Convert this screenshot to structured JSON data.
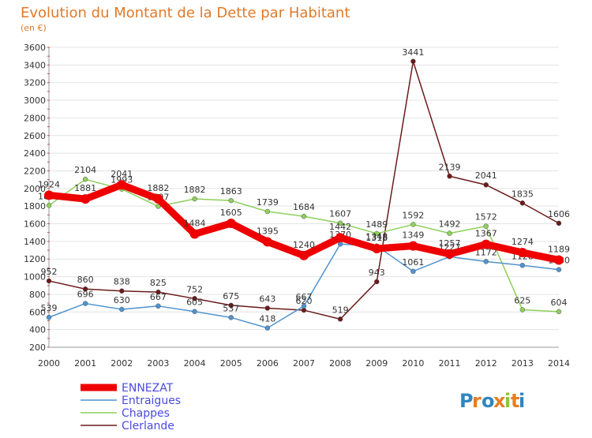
{
  "header": {
    "title": "Evolution du Montant de la Dette par Habitant",
    "subtitle": "(en €)"
  },
  "logo": {
    "text": "Proxiti"
  },
  "chart_data": {
    "type": "line",
    "title": "Evolution du Montant de la Dette par Habitant",
    "ylabel": "(en €)",
    "x": [
      2000,
      2001,
      2002,
      2003,
      2004,
      2005,
      2006,
      2007,
      2008,
      2009,
      2010,
      2011,
      2012,
      2013,
      2014
    ],
    "ylim": [
      200,
      3600
    ],
    "yticks": [
      200,
      400,
      600,
      800,
      1000,
      1200,
      1400,
      1600,
      1800,
      2000,
      2200,
      2400,
      2600,
      2800,
      3000,
      3200,
      3400,
      3600
    ],
    "grid": true,
    "legend": "bottom-left",
    "series": [
      {
        "name": "Clerlande",
        "color": "#6b1a1a",
        "values": [
          952,
          860,
          838,
          825,
          752,
          675,
          643,
          620,
          519,
          943,
          3441,
          2139,
          2041,
          1835,
          1606
        ]
      },
      {
        "name": "Chappes",
        "color": "#8ed05a",
        "values": [
          1808,
          2104,
          1993,
          1797,
          1882,
          1863,
          1739,
          1684,
          1607,
          1489,
          1592,
          1492,
          1572,
          625,
          604
        ]
      },
      {
        "name": "Entraigues",
        "color": "#4f93cf",
        "values": [
          539,
          696,
          630,
          667,
          605,
          537,
          418,
          667,
          1370,
          1348,
          1061,
          1227,
          1172,
          1128,
          1080
        ]
      },
      {
        "name": "ENNEZAT",
        "color": "#ee0000",
        "values": [
          1924,
          1881,
          2041,
          1882,
          1484,
          1605,
          1395,
          1240,
          1442,
          1318,
          1349,
          1257,
          1367,
          1274,
          1189
        ]
      }
    ]
  }
}
